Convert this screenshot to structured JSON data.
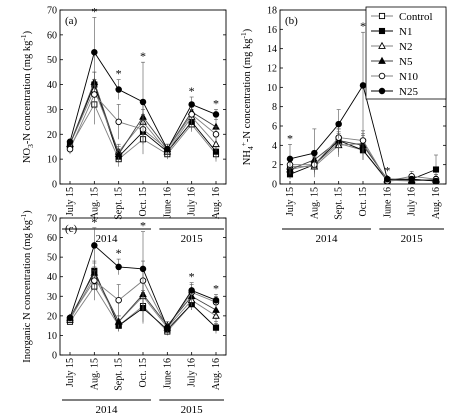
{
  "legend": {
    "position": "top-right",
    "entries": [
      {
        "label": "Control",
        "marker": "square",
        "fill": "open"
      },
      {
        "label": "N1",
        "marker": "square",
        "fill": "filled"
      },
      {
        "label": "N2",
        "marker": "triangle",
        "fill": "open"
      },
      {
        "label": "N5",
        "marker": "triangle",
        "fill": "filled"
      },
      {
        "label": "N10",
        "marker": "circle",
        "fill": "open"
      },
      {
        "label": "N25",
        "marker": "circle",
        "fill": "filled"
      }
    ]
  },
  "chart_data": [
    {
      "type": "line",
      "panel": "(a)",
      "ylabel_main": "NO",
      "ylabel_sub": "3",
      "ylabel_sup": "",
      "ylabel_rest": "-N concentration (mg kg",
      "ylabel_exp": "-1",
      "ylabel_end": ")",
      "ylim": [
        0,
        70
      ],
      "yticks": [
        0,
        10,
        20,
        30,
        40,
        50,
        60,
        70
      ],
      "categories": [
        "July 15",
        "Aug. 15",
        "Sept. 15",
        "Oct. 15",
        "June 16",
        "July 16",
        "Aug. 16"
      ],
      "years": [
        {
          "label": "2014",
          "from": 0,
          "to": 3
        },
        {
          "label": "2015",
          "from": 4,
          "to": 6
        }
      ],
      "significance": [
        false,
        true,
        true,
        true,
        false,
        true,
        true
      ],
      "series": [
        {
          "name": "Control",
          "values": [
            15,
            32,
            10,
            18,
            12,
            24,
            12
          ],
          "err": [
            1,
            8,
            3,
            6,
            2,
            3,
            3
          ]
        },
        {
          "name": "N1",
          "values": [
            16,
            40,
            11,
            21,
            13,
            25,
            13
          ],
          "err": [
            1,
            5,
            2,
            5,
            2,
            3,
            3
          ]
        },
        {
          "name": "N2",
          "values": [
            16,
            38,
            13,
            25,
            13,
            27,
            16
          ],
          "err": [
            1,
            4,
            3,
            5,
            2,
            3,
            3
          ]
        },
        {
          "name": "N5",
          "values": [
            16,
            41,
            12,
            27,
            14,
            29,
            23
          ],
          "err": [
            1,
            4,
            3,
            5,
            2,
            3,
            3
          ]
        },
        {
          "name": "N10",
          "values": [
            14,
            36,
            25,
            22,
            14,
            28,
            20
          ],
          "err": [
            2,
            6,
            7,
            6,
            2,
            3,
            3
          ]
        },
        {
          "name": "N25",
          "values": [
            17,
            53,
            38,
            33,
            14,
            32,
            28
          ],
          "err": [
            1,
            14,
            4,
            16,
            2,
            3,
            2
          ]
        }
      ]
    },
    {
      "type": "line",
      "panel": "(b)",
      "ylabel_main": "NH",
      "ylabel_sub": "4",
      "ylabel_sup": "+",
      "ylabel_rest": "-N concentration (mg kg",
      "ylabel_exp": "-1",
      "ylabel_end": ")",
      "ylim": [
        0,
        18
      ],
      "yticks": [
        0,
        2,
        4,
        6,
        8,
        10,
        12,
        14,
        16,
        18
      ],
      "categories": [
        "July 15",
        "Aug. 15",
        "Sept. 15",
        "Oct. 15",
        "June 16",
        "July 16",
        "Aug. 16"
      ],
      "years": [
        {
          "label": "2014",
          "from": 0,
          "to": 3
        },
        {
          "label": "2015",
          "from": 4,
          "to": 6
        }
      ],
      "significance": [
        true,
        false,
        false,
        true,
        true,
        false,
        false
      ],
      "series": [
        {
          "name": "Control",
          "values": [
            1.5,
            2.0,
            4.2,
            3.5,
            0.3,
            0.5,
            0.3
          ],
          "err": [
            0.5,
            0.8,
            1.2,
            1.0,
            0.2,
            0.3,
            0.3
          ]
        },
        {
          "name": "N1",
          "values": [
            1.0,
            2.0,
            4.5,
            3.5,
            0.4,
            0.5,
            1.5
          ],
          "err": [
            0.5,
            0.8,
            1.2,
            1.0,
            0.2,
            0.3,
            1.5
          ]
        },
        {
          "name": "N2",
          "values": [
            1.8,
            1.8,
            4.0,
            4.2,
            0.4,
            0.3,
            0.5
          ],
          "err": [
            0.5,
            0.8,
            1.2,
            1.0,
            0.2,
            0.3,
            0.5
          ]
        },
        {
          "name": "N5",
          "values": [
            1.5,
            2.5,
            4.5,
            4.0,
            0.5,
            0.4,
            0.4
          ],
          "err": [
            0.5,
            0.8,
            1.2,
            1.0,
            0.2,
            0.3,
            0.4
          ]
        },
        {
          "name": "N10",
          "values": [
            2.0,
            2.0,
            4.8,
            4.5,
            0.3,
            0.8,
            0.5
          ],
          "err": [
            0.5,
            0.8,
            1.2,
            1.0,
            0.2,
            0.5,
            0.5
          ]
        },
        {
          "name": "N25",
          "values": [
            2.6,
            3.2,
            6.2,
            10.2,
            0.5,
            0.5,
            0.3
          ],
          "err": [
            1.5,
            2.5,
            1.5,
            5.5,
            0.3,
            0.3,
            0.3
          ]
        }
      ]
    },
    {
      "type": "line",
      "panel": "(c)",
      "ylabel_main": "Inorganic N concentration (mg kg",
      "ylabel_sub": "",
      "ylabel_sup": "",
      "ylabel_rest": "",
      "ylabel_exp": "-1",
      "ylabel_end": ")",
      "ylim": [
        0,
        70
      ],
      "yticks": [
        0,
        10,
        20,
        30,
        40,
        50,
        60,
        70
      ],
      "categories": [
        "July 15",
        "Aug. 15",
        "Sept. 15",
        "Oct. 15",
        "June 16",
        "July 16",
        "Aug. 16"
      ],
      "years": [
        {
          "label": "2014",
          "from": 0,
          "to": 3
        },
        {
          "label": "2015",
          "from": 4,
          "to": 6
        }
      ],
      "significance": [
        false,
        true,
        true,
        true,
        false,
        true,
        true
      ],
      "series": [
        {
          "name": "Control",
          "values": [
            17,
            35,
            15,
            25,
            12,
            26,
            14
          ],
          "err": [
            1,
            7,
            3,
            8,
            2,
            3,
            3
          ]
        },
        {
          "name": "N1",
          "values": [
            18,
            43,
            15,
            24,
            13,
            26,
            14
          ],
          "err": [
            1,
            5,
            3,
            8,
            2,
            3,
            2
          ]
        },
        {
          "name": "N2",
          "values": [
            18,
            40,
            17,
            30,
            14,
            28,
            20
          ],
          "err": [
            1,
            5,
            3,
            8,
            2,
            3,
            3
          ]
        },
        {
          "name": "N5",
          "values": [
            19,
            42,
            17,
            31,
            15,
            30,
            23
          ],
          "err": [
            1,
            5,
            3,
            8,
            2,
            3,
            3
          ]
        },
        {
          "name": "N10",
          "values": [
            19,
            38,
            28,
            38,
            14,
            32,
            27
          ],
          "err": [
            1,
            5,
            8,
            10,
            2,
            4,
            3
          ]
        },
        {
          "name": "N25",
          "values": [
            19,
            56,
            45,
            44,
            14,
            33,
            28
          ],
          "err": [
            1,
            9,
            4,
            19,
            2,
            4,
            3
          ]
        }
      ]
    }
  ]
}
